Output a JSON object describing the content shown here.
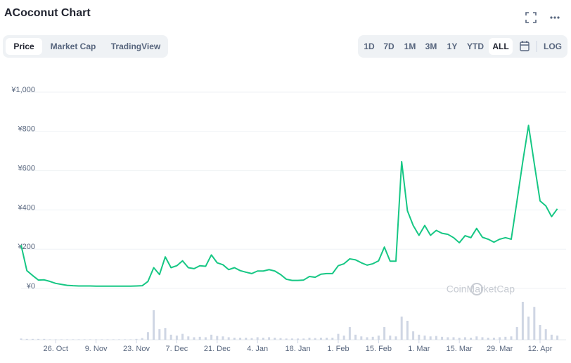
{
  "chart_data": {
    "type": "line",
    "title": "ACoconut Chart",
    "categories": [
      null,
      null,
      null,
      null,
      null,
      null,
      "26. Oct",
      null,
      null,
      null,
      null,
      null,
      null,
      "9. Nov",
      null,
      null,
      null,
      null,
      null,
      null,
      "23. Nov",
      null,
      null,
      null,
      null,
      null,
      null,
      "7. Dec",
      null,
      null,
      null,
      null,
      null,
      null,
      "21. Dec",
      null,
      null,
      null,
      null,
      null,
      null,
      "4. Jan",
      null,
      null,
      null,
      null,
      null,
      null,
      "18. Jan",
      null,
      null,
      null,
      null,
      null,
      null,
      "1. Feb",
      null,
      null,
      null,
      null,
      null,
      null,
      "15. Feb",
      null,
      null,
      null,
      null,
      null,
      null,
      "1. Mar",
      null,
      null,
      null,
      null,
      null,
      null,
      "15. Mar",
      null,
      null,
      null,
      null,
      null,
      null,
      "29. Mar",
      null,
      null,
      null,
      null,
      null,
      null,
      "12. Apr",
      null,
      null,
      null
    ],
    "series": [
      {
        "name": "Price",
        "color": "#16c784",
        "values": [
          210,
          80,
          55,
          32,
          33,
          25,
          15,
          10,
          5,
          3,
          2,
          2,
          2,
          1,
          1,
          1,
          1,
          1,
          1,
          1,
          2,
          3,
          25,
          95,
          60,
          150,
          95,
          105,
          130,
          95,
          90,
          105,
          102,
          160,
          120,
          110,
          85,
          95,
          80,
          72,
          65,
          78,
          78,
          85,
          78,
          60,
          36,
          30,
          30,
          32,
          50,
          46,
          62,
          65,
          65,
          105,
          115,
          140,
          135,
          120,
          108,
          115,
          130,
          200,
          128,
          128,
          635,
          385,
          310,
          260,
          310,
          260,
          285,
          270,
          265,
          248,
          222,
          258,
          248,
          295,
          250,
          240,
          225,
          240,
          248,
          240,
          435,
          635,
          820,
          625,
          435,
          410,
          355,
          395
        ]
      },
      {
        "name": "Volume",
        "color": "#cfd6e4",
        "axis": "y2",
        "values": [
          3,
          2,
          2,
          2,
          2,
          1,
          1,
          1,
          1,
          1,
          1,
          1,
          1,
          1,
          1,
          1,
          1,
          1,
          1,
          1,
          2,
          4,
          18,
          70,
          25,
          28,
          12,
          10,
          14,
          8,
          6,
          7,
          6,
          12,
          9,
          8,
          6,
          5,
          5,
          5,
          4,
          6,
          5,
          6,
          5,
          4,
          3,
          3,
          3,
          3,
          5,
          4,
          5,
          5,
          5,
          14,
          10,
          30,
          12,
          8,
          6,
          7,
          10,
          30,
          10,
          8,
          55,
          45,
          20,
          12,
          10,
          8,
          9,
          7,
          6,
          6,
          5,
          6,
          5,
          8,
          6,
          5,
          5,
          6,
          7,
          8,
          30,
          90,
          55,
          78,
          35,
          25,
          12,
          10
        ]
      }
    ],
    "ylim": [
      0,
      1000
    ],
    "yticks": [
      {
        "value": 0,
        "label": "¥0"
      },
      {
        "value": 200,
        "label": "¥200"
      },
      {
        "value": 400,
        "label": "¥400"
      },
      {
        "value": 600,
        "label": "¥600"
      },
      {
        "value": 800,
        "label": "¥800"
      },
      {
        "value": 1000,
        "label": "¥1,000"
      }
    ],
    "y2lim": [
      0,
      100
    ],
    "grid": true,
    "watermark": "CoinMarketCap"
  },
  "ui": {
    "tabs": [
      "Price",
      "Market Cap",
      "TradingView"
    ],
    "ranges": [
      "1D",
      "7D",
      "1M",
      "3M",
      "1Y",
      "YTD",
      "ALL"
    ],
    "log": "LOG"
  }
}
